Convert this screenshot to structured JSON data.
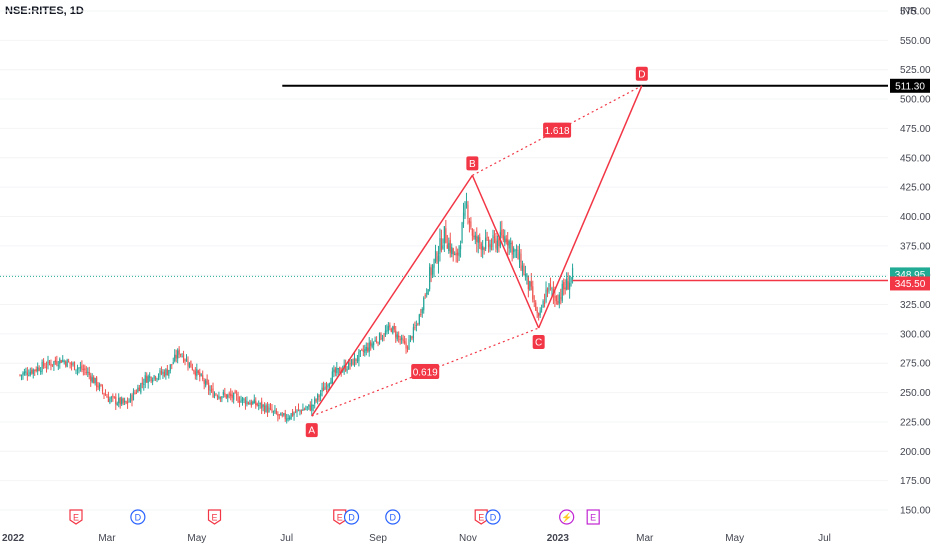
{
  "header": {
    "symbol": "NSE:RITES, 1D"
  },
  "chart_data": {
    "type": "candlestick",
    "symbol": "NSE:RITES",
    "interval": "1D",
    "currency": "INR",
    "y_ticks": [
      575,
      550,
      525,
      500,
      475,
      450,
      425,
      400,
      375,
      350,
      325,
      300,
      275,
      250,
      225,
      200,
      175,
      150
    ],
    "ylim": [
      140,
      590
    ],
    "x_ticks": [
      {
        "label": "2022",
        "day": 0
      },
      {
        "label": "Mar",
        "day": 59
      },
      {
        "label": "May",
        "day": 120
      },
      {
        "label": "Jul",
        "day": 181
      },
      {
        "label": "Sep",
        "day": 243
      },
      {
        "label": "Nov",
        "day": 304
      },
      {
        "label": "2023",
        "day": 365
      },
      {
        "label": "Mar",
        "day": 424
      },
      {
        "label": "May",
        "day": 485
      },
      {
        "label": "Jul",
        "day": 546
      }
    ],
    "price_series": [
      {
        "day": 0,
        "price": 265
      },
      {
        "day": 14,
        "price": 272
      },
      {
        "day": 28,
        "price": 278
      },
      {
        "day": 45,
        "price": 268
      },
      {
        "day": 60,
        "price": 245
      },
      {
        "day": 72,
        "price": 240
      },
      {
        "day": 85,
        "price": 262
      },
      {
        "day": 100,
        "price": 268
      },
      {
        "day": 108,
        "price": 285
      },
      {
        "day": 118,
        "price": 270
      },
      {
        "day": 130,
        "price": 250
      },
      {
        "day": 148,
        "price": 245
      },
      {
        "day": 165,
        "price": 238
      },
      {
        "day": 178,
        "price": 228
      },
      {
        "day": 190,
        "price": 235
      },
      {
        "day": 198,
        "price": 238
      },
      {
        "day": 212,
        "price": 265
      },
      {
        "day": 225,
        "price": 275
      },
      {
        "day": 240,
        "price": 293
      },
      {
        "day": 252,
        "price": 305
      },
      {
        "day": 262,
        "price": 288
      },
      {
        "day": 270,
        "price": 310
      },
      {
        "day": 278,
        "price": 350
      },
      {
        "day": 288,
        "price": 385
      },
      {
        "day": 296,
        "price": 362
      },
      {
        "day": 303,
        "price": 410
      },
      {
        "day": 308,
        "price": 380
      },
      {
        "day": 318,
        "price": 375
      },
      {
        "day": 330,
        "price": 383
      },
      {
        "day": 340,
        "price": 360
      },
      {
        "day": 346,
        "price": 338
      },
      {
        "day": 352,
        "price": 312
      },
      {
        "day": 358,
        "price": 340
      },
      {
        "day": 364,
        "price": 330
      },
      {
        "day": 370,
        "price": 340
      },
      {
        "day": 375,
        "price": 349
      }
    ],
    "pattern_points": [
      {
        "label": "A",
        "day": 198,
        "price": 230
      },
      {
        "label": "B",
        "day": 307,
        "price": 435
      },
      {
        "label": "C",
        "day": 352,
        "price": 305
      },
      {
        "label": "D",
        "day": 422,
        "price": 511.3
      }
    ],
    "ratios": [
      {
        "label": "1.618",
        "from": "B",
        "to": "D"
      },
      {
        "label": "0.619",
        "from": "A",
        "to": "C"
      }
    ],
    "levels": [
      {
        "price": 511.3,
        "label": "511.30",
        "color": "#000000",
        "from_day": 178
      },
      {
        "price": 345.5,
        "label": "345.50",
        "color": "#f23645",
        "from_day": 375
      }
    ],
    "last_price": {
      "price": 348.95,
      "label": "348.95",
      "color": "#22ab94"
    },
    "events": [
      {
        "day": 38,
        "type": "earnings",
        "letter": "E"
      },
      {
        "day": 80,
        "type": "dividend",
        "letter": "D"
      },
      {
        "day": 132,
        "type": "earnings",
        "letter": "E"
      },
      {
        "day": 217,
        "type": "earnings",
        "letter": "E"
      },
      {
        "day": 225,
        "type": "dividend",
        "letter": "D"
      },
      {
        "day": 253,
        "type": "dividend",
        "letter": "D"
      },
      {
        "day": 313,
        "type": "earnings",
        "letter": "E"
      },
      {
        "day": 321,
        "type": "dividend",
        "letter": "D"
      },
      {
        "day": 371,
        "type": "split",
        "letter": "⚡"
      },
      {
        "day": 389,
        "type": "upcoming-earnings",
        "letter": "E"
      }
    ],
    "colors": {
      "up": "#26a69a",
      "down": "#ef5350",
      "pattern": "#f23645"
    }
  }
}
